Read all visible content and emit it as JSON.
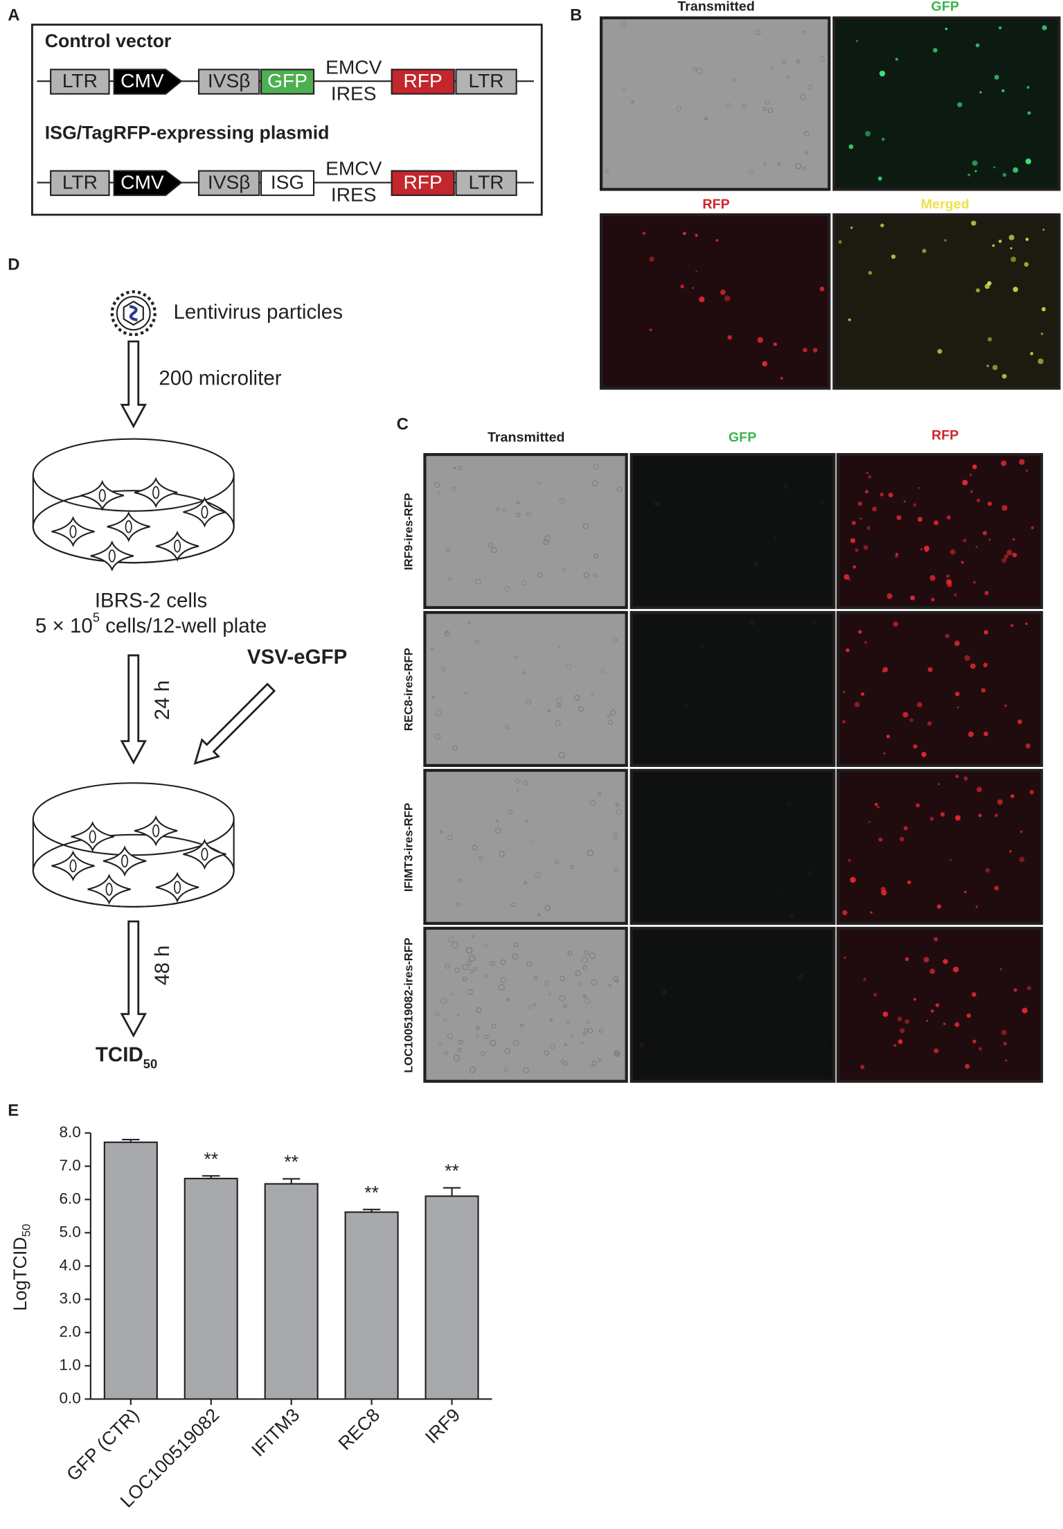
{
  "panel_a": {
    "label": "A",
    "construct_1": {
      "title": "Control vector",
      "elements": [
        "LTR",
        "CMV",
        "IVSβ",
        "GFP",
        "EMCV",
        "IRES",
        "RFP",
        "LTR"
      ]
    },
    "construct_2": {
      "title": "ISG/TagRFP-expressing plasmid",
      "elements": [
        "LTR",
        "CMV",
        "IVSβ",
        "ISG",
        "EMCV",
        "IRES",
        "RFP",
        "LTR"
      ]
    }
  },
  "panel_b": {
    "label": "B",
    "images": [
      "Transmitted",
      "GFP",
      "RFP",
      "Merged"
    ]
  },
  "panel_c": {
    "label": "C",
    "columns": [
      "Transmitted",
      "GFP",
      "RFP"
    ],
    "rows": [
      "IRF9-ires-RFP",
      "REC8-ires-RFP",
      "IFIMT3-ires-RFP",
      "LOC100519082-ires-RFP"
    ]
  },
  "panel_d": {
    "label": "D",
    "particles": "Lentivirus particles",
    "volume": "200 microliter",
    "cells": "IBRS-2 cells",
    "density_base": "5 × 10",
    "density_exponent": "5",
    "density_unit": " cells/12-well plate",
    "time_1": "24 h",
    "virus": "VSV-eGFP",
    "time_2": "48 h",
    "readout": "TCID",
    "readout_subscript": "50"
  },
  "panel_e": {
    "label": "E"
  },
  "chart_data": {
    "type": "bar",
    "ylabel": "LogTCID",
    "ylabel_subscript": "50",
    "categories": [
      "GFP (CTR)",
      "LOC100519082",
      "IFITM3",
      "REC8",
      "IRF9"
    ],
    "values": [
      7.72,
      6.63,
      6.47,
      5.62,
      6.1
    ],
    "errors": [
      0.08,
      0.08,
      0.15,
      0.08,
      0.25
    ],
    "significance": [
      null,
      "**",
      "**",
      "**",
      "**"
    ],
    "color": "#a7a9ac",
    "ylim": [
      0,
      8
    ],
    "yticks": [
      {
        "value": 0,
        "label": "0.0"
      },
      {
        "value": 1,
        "label": "1.0"
      },
      {
        "value": 2,
        "label": "2.0"
      },
      {
        "value": 3,
        "label": "3.0"
      },
      {
        "value": 4,
        "label": "4.0"
      },
      {
        "value": 5,
        "label": "5.0"
      },
      {
        "value": 6,
        "label": "6.0"
      },
      {
        "value": 7,
        "label": "7.0"
      },
      {
        "value": 8,
        "label": "8.0"
      }
    ]
  }
}
